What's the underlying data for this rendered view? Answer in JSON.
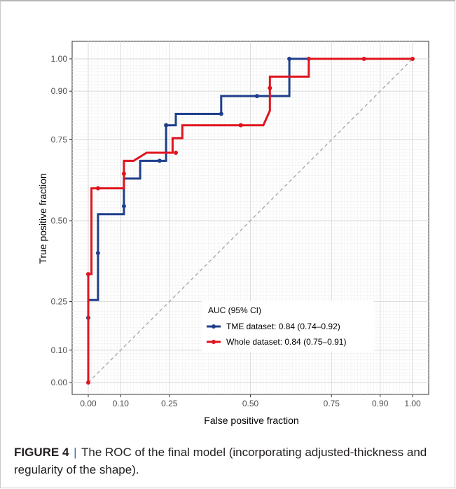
{
  "chart_data": {
    "type": "line",
    "xlabel": "False positive fraction",
    "ylabel": "True positive fraction",
    "xlim": [
      0,
      1
    ],
    "ylim": [
      0,
      1
    ],
    "x_ticks": [
      "0.00",
      "0.10",
      "0.25",
      "0.50",
      "0.75",
      "0.90",
      "1.00"
    ],
    "x_tick_values": [
      0,
      0.1,
      0.25,
      0.5,
      0.75,
      0.9,
      1.0
    ],
    "y_ticks": [
      "0.00",
      "0.10",
      "0.25",
      "0.50",
      "0.75",
      "0.90",
      "1.00"
    ],
    "y_tick_values": [
      0,
      0.1,
      0.25,
      0.5,
      0.75,
      0.9,
      1.0
    ],
    "minor_grid_step": 0.01,
    "grid": true,
    "legend_title": "AUC (95% CI)",
    "legend_position": "bottom-right",
    "series": [
      {
        "name": "TME dataset: 0.84 (0.74–0.92)",
        "color": "#1f3f8c",
        "steps": [
          [
            0,
            0
          ],
          [
            0,
            0.255
          ],
          [
            0.03,
            0.255
          ],
          [
            0.03,
            0.52
          ],
          [
            0.11,
            0.52
          ],
          [
            0.11,
            0.63
          ],
          [
            0.16,
            0.63
          ],
          [
            0.16,
            0.685
          ],
          [
            0.24,
            0.685
          ],
          [
            0.24,
            0.795
          ],
          [
            0.27,
            0.795
          ],
          [
            0.27,
            0.83
          ],
          [
            0.41,
            0.83
          ],
          [
            0.41,
            0.885
          ],
          [
            0.62,
            0.885
          ],
          [
            0.62,
            1.0
          ],
          [
            1.0,
            1.0
          ]
        ],
        "points": [
          [
            0,
            0.2
          ],
          [
            0.03,
            0.4
          ],
          [
            0.11,
            0.545
          ],
          [
            0.22,
            0.685
          ],
          [
            0.24,
            0.795
          ],
          [
            0.41,
            0.83
          ],
          [
            0.52,
            0.885
          ],
          [
            0.62,
            1.0
          ]
        ]
      },
      {
        "name": "Whole dataset: 0.84 (0.75–0.91)",
        "color": "#e0141e",
        "steps": [
          [
            0,
            0
          ],
          [
            0,
            0.335
          ],
          [
            0.01,
            0.335
          ],
          [
            0.01,
            0.6
          ],
          [
            0.11,
            0.6
          ],
          [
            0.11,
            0.685
          ],
          [
            0.14,
            0.685
          ],
          [
            0.18,
            0.71
          ],
          [
            0.26,
            0.71
          ],
          [
            0.26,
            0.755
          ],
          [
            0.29,
            0.755
          ],
          [
            0.29,
            0.795
          ],
          [
            0.54,
            0.795
          ],
          [
            0.56,
            0.84
          ],
          [
            0.56,
            0.945
          ],
          [
            0.68,
            0.945
          ],
          [
            0.68,
            1.0
          ],
          [
            1.0,
            1.0
          ]
        ],
        "points": [
          [
            0,
            0
          ],
          [
            0,
            0.335
          ],
          [
            0.03,
            0.6
          ],
          [
            0.11,
            0.645
          ],
          [
            0.27,
            0.71
          ],
          [
            0.47,
            0.795
          ],
          [
            0.56,
            0.91
          ],
          [
            0.68,
            1.0
          ],
          [
            0.85,
            1.0
          ],
          [
            1.0,
            1.0
          ]
        ]
      }
    ],
    "reference_line": [
      [
        0,
        0
      ],
      [
        1,
        1
      ]
    ]
  },
  "caption": {
    "label": "FIGURE 4",
    "separator": "|",
    "text": "The ROC of the final model (incorporating adjusted-thickness and regularity of the shape)."
  }
}
